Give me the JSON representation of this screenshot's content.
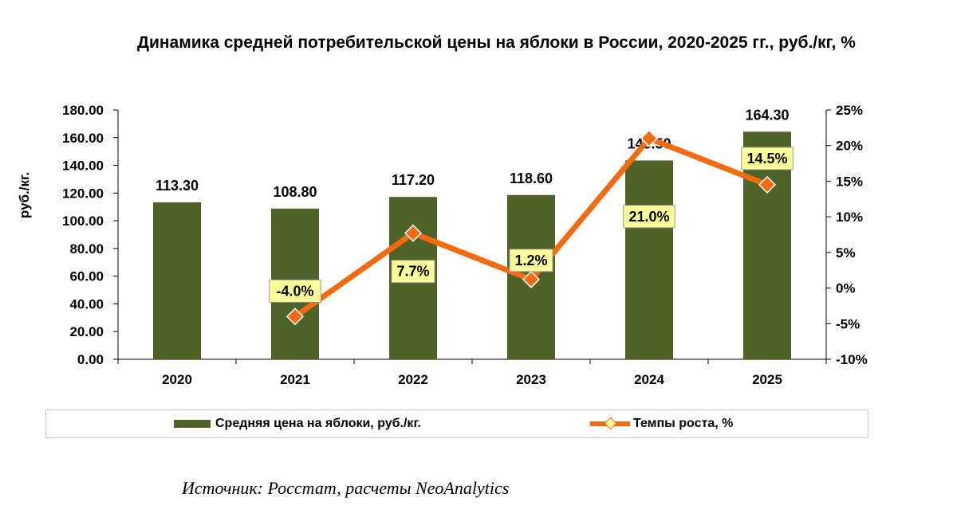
{
  "title": "Динамика средней потребительской цены на яблоки в России, 2020-2025 гг., руб./кг, %",
  "source": "Источник: Росстат, расчеты NeoAnalytics",
  "colors": {
    "bar": "#4f6228",
    "line": "#f26b10",
    "label_bg": "#ffff99"
  },
  "chart_data": {
    "type": "bar",
    "categories": [
      "2020",
      "2021",
      "2022",
      "2023",
      "2024",
      "2025"
    ],
    "series": [
      {
        "name": "Средняя цена на яблоки, руб./кг.",
        "type": "bar",
        "axis": "left",
        "values": [
          113.3,
          108.8,
          117.2,
          118.6,
          143.5,
          164.3
        ],
        "labels": [
          "113.30",
          "108.80",
          "117.20",
          "118.60",
          "143.50",
          "164.30"
        ]
      },
      {
        "name": "Темпы роста, %",
        "type": "line",
        "axis": "right",
        "values": [
          null,
          -4.0,
          7.7,
          1.2,
          21.0,
          14.5
        ],
        "labels": [
          "",
          "-4.0%",
          "7.7%",
          "1.2%",
          "21.0%",
          "14.5%"
        ]
      }
    ],
    "ylabel": "руб./кг.",
    "ylim": [
      0,
      180
    ],
    "y_ticks": [
      "0.00",
      "20.00",
      "40.00",
      "60.00",
      "80.00",
      "100.00",
      "120.00",
      "140.00",
      "160.00",
      "180.00"
    ],
    "y2lim": [
      -10,
      25
    ],
    "y2_ticks": [
      "-10%",
      "-5%",
      "0%",
      "5%",
      "10%",
      "15%",
      "20%",
      "25%"
    ],
    "grid": false,
    "legend_position": "bottom"
  }
}
